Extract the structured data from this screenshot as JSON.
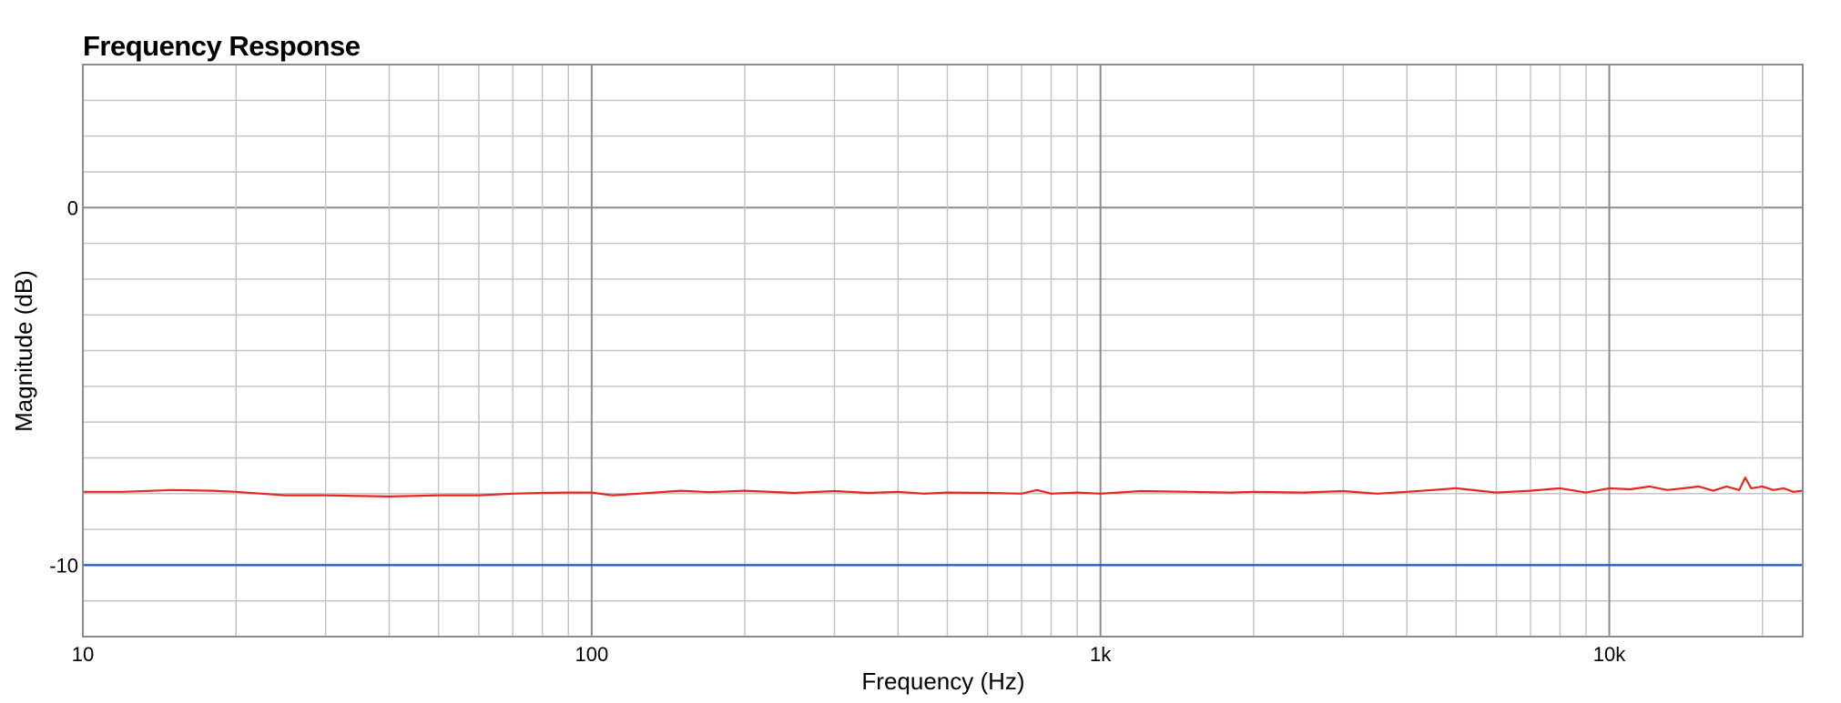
{
  "chart_data": {
    "type": "line",
    "title": "Frequency Response",
    "xlabel": "Frequency (Hz)",
    "ylabel": "Magnitude (dB)",
    "x_scale": "log",
    "xlim": [
      10,
      24000
    ],
    "ylim": [
      -12,
      4
    ],
    "grid": true,
    "legend": "none",
    "x_ticks": [
      {
        "value": 10,
        "label": "10"
      },
      {
        "value": 100,
        "label": "100"
      },
      {
        "value": 1000,
        "label": "1k"
      },
      {
        "value": 10000,
        "label": "10k"
      }
    ],
    "y_ticks": [
      {
        "value": 0,
        "label": "0"
      },
      {
        "value": -10,
        "label": "-10"
      }
    ],
    "series": [
      {
        "color": "#e8251f",
        "x": [
          10,
          12,
          15,
          18,
          20,
          25,
          30,
          40,
          50,
          60,
          70,
          80,
          90,
          100,
          110,
          130,
          150,
          170,
          200,
          250,
          300,
          350,
          400,
          450,
          500,
          600,
          700,
          750,
          800,
          900,
          1000,
          1200,
          1500,
          1800,
          2000,
          2500,
          3000,
          3500,
          4000,
          4500,
          5000,
          6000,
          7000,
          8000,
          9000,
          10000,
          11000,
          12000,
          13000,
          14000,
          15000,
          16000,
          17000,
          18000,
          18500,
          19000,
          20000,
          21000,
          22000,
          23000,
          24000
        ],
        "y": [
          -7.95,
          -7.95,
          -7.9,
          -7.92,
          -7.95,
          -8.05,
          -8.05,
          -8.08,
          -8.05,
          -8.05,
          -8.0,
          -7.98,
          -7.97,
          -7.97,
          -8.05,
          -7.98,
          -7.92,
          -7.96,
          -7.92,
          -7.98,
          -7.93,
          -7.98,
          -7.95,
          -8.0,
          -7.97,
          -7.98,
          -8.0,
          -7.9,
          -8.0,
          -7.97,
          -8.0,
          -7.93,
          -7.95,
          -7.97,
          -7.95,
          -7.97,
          -7.93,
          -8.0,
          -7.95,
          -7.9,
          -7.85,
          -7.97,
          -7.92,
          -7.85,
          -7.97,
          -7.85,
          -7.88,
          -7.8,
          -7.9,
          -7.85,
          -7.8,
          -7.92,
          -7.8,
          -7.9,
          -7.55,
          -7.85,
          -7.8,
          -7.9,
          -7.85,
          -7.95,
          -7.92
        ]
      },
      {
        "color": "#2255c8",
        "x": [
          10,
          24000
        ],
        "y": [
          -10,
          -10
        ]
      }
    ]
  }
}
